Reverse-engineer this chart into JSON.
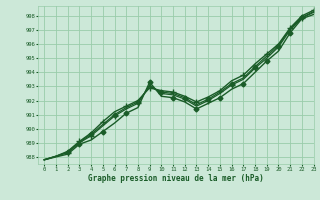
{
  "title": "",
  "xlabel": "Graphe pression niveau de la mer (hPa)",
  "ylabel": "",
  "bg_color": "#cce8d8",
  "grid_color": "#99ccaa",
  "line_color": "#1a5c28",
  "xlim": [
    -0.5,
    23
  ],
  "ylim": [
    987.5,
    998.7
  ],
  "yticks": [
    988,
    989,
    990,
    991,
    992,
    993,
    994,
    995,
    996,
    997,
    998
  ],
  "xticks": [
    0,
    1,
    2,
    3,
    4,
    5,
    6,
    7,
    8,
    9,
    10,
    11,
    12,
    13,
    14,
    15,
    16,
    17,
    18,
    19,
    20,
    21,
    22,
    23
  ],
  "series": [
    {
      "y": [
        987.8,
        988.0,
        988.2,
        988.9,
        989.2,
        989.8,
        990.4,
        991.1,
        991.5,
        993.3,
        992.3,
        992.2,
        991.9,
        991.4,
        991.8,
        992.2,
        992.8,
        993.2,
        994.0,
        994.8,
        995.5,
        996.8,
        997.8,
        998.1
      ],
      "marker": "D",
      "markersize": 2.5,
      "lw": 1.0,
      "markevery": [
        3,
        5,
        7,
        9,
        11,
        13,
        15,
        17,
        19,
        21
      ]
    },
    {
      "y": [
        987.8,
        988.05,
        988.3,
        989.0,
        989.5,
        990.2,
        990.9,
        991.4,
        991.8,
        993.1,
        992.5,
        992.4,
        992.1,
        991.6,
        992.0,
        992.5,
        993.1,
        993.5,
        994.3,
        995.0,
        995.8,
        997.0,
        997.85,
        998.25
      ],
      "marker": "+",
      "markersize": 4.0,
      "lw": 0.9,
      "markevery": [
        2,
        4,
        6,
        8,
        10,
        12,
        14,
        16,
        18,
        20,
        22
      ]
    },
    {
      "y": [
        987.8,
        988.05,
        988.35,
        989.05,
        989.6,
        990.3,
        991.0,
        991.5,
        991.9,
        993.0,
        992.6,
        992.5,
        992.2,
        991.7,
        992.1,
        992.6,
        993.2,
        993.6,
        994.4,
        995.15,
        995.9,
        997.1,
        997.9,
        998.3
      ],
      "marker": "D",
      "markersize": 2.5,
      "lw": 0.9,
      "markevery": [
        2,
        4,
        6,
        8,
        10,
        12,
        14,
        16,
        18,
        20,
        22
      ]
    },
    {
      "y": [
        987.8,
        988.05,
        988.4,
        989.1,
        989.7,
        990.5,
        991.2,
        991.6,
        992.0,
        992.9,
        992.7,
        992.6,
        992.3,
        991.9,
        992.25,
        992.7,
        993.4,
        993.8,
        994.6,
        995.3,
        996.0,
        997.15,
        998.0,
        998.4
      ],
      "marker": "+",
      "markersize": 4.0,
      "lw": 1.0,
      "markevery": [
        3,
        5,
        7,
        9,
        11,
        13,
        15,
        17,
        19,
        21,
        23
      ]
    }
  ]
}
